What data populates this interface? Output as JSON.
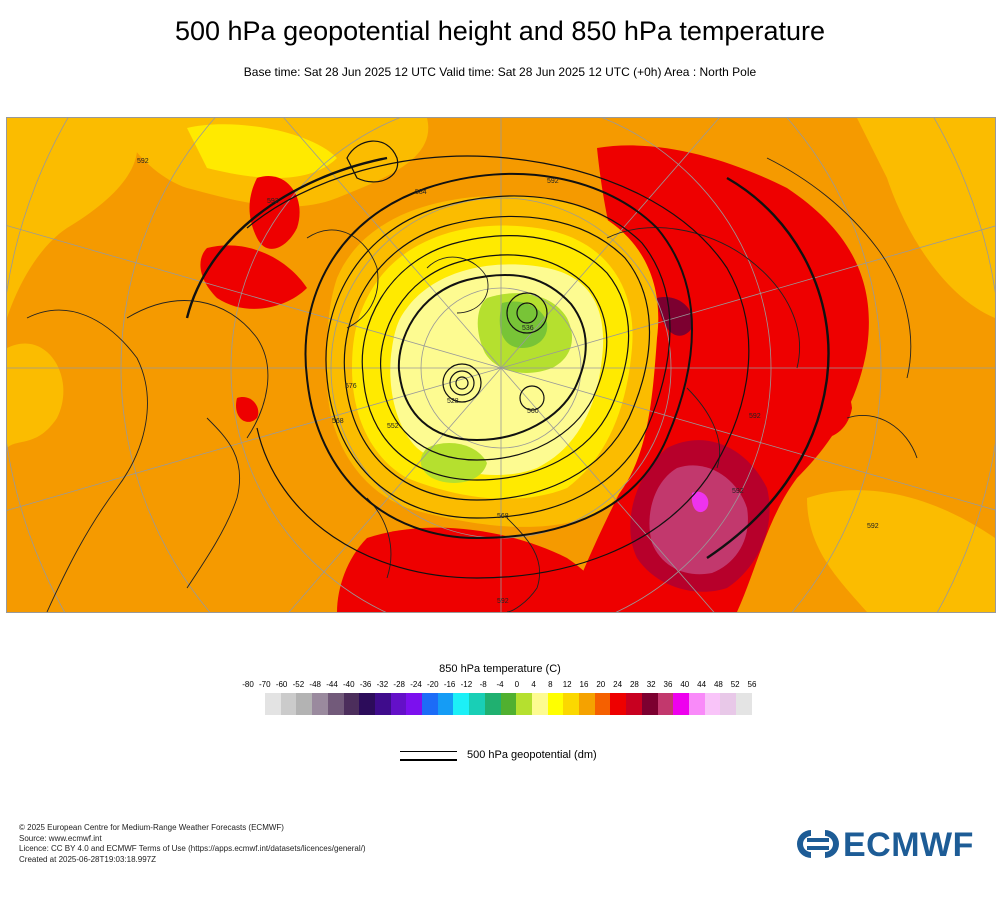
{
  "header": {
    "title": "500 hPa geopotential height and 850 hPa temperature",
    "subtitle": "Base time: Sat 28 Jun 2025 12 UTC Valid time: Sat 28 Jun 2025 12 UTC (+0h) Area : North Pole"
  },
  "map": {
    "contour_labels": [
      "528",
      "536",
      "544",
      "552",
      "560",
      "568",
      "576",
      "584",
      "592"
    ],
    "shading_colors": {
      "warm_background": "#f59a00",
      "light_orange": "#fbbc00",
      "yellow": "#ffea00",
      "pale_yellow": "#fdfb91",
      "lime": "#b5e02f",
      "green": "#78c437",
      "red": "#ee0000",
      "dark_red": "#b7002b",
      "maroon": "#c2386d",
      "magenta": "#ee33ee"
    }
  },
  "legend": {
    "title": "850 hPa temperature (C)",
    "ticks": [
      "-80",
      "-70",
      "-60",
      "-52",
      "-48",
      "-44",
      "-40",
      "-36",
      "-32",
      "-28",
      "-24",
      "-20",
      "-16",
      "-12",
      "-8",
      "-4",
      "0",
      "4",
      "8",
      "12",
      "16",
      "20",
      "24",
      "28",
      "32",
      "36",
      "40",
      "44",
      "48",
      "52",
      "56"
    ],
    "colors": [
      "#e3e3e3",
      "#cbcbcb",
      "#b3b3b3",
      "#9a8a9e",
      "#725a7a",
      "#4c2e5c",
      "#2c0c5a",
      "#3f0c8c",
      "#6410c8",
      "#7c10ee",
      "#1c6cf7",
      "#159cf5",
      "#1cf0f7",
      "#19cfb6",
      "#20b070",
      "#50b030",
      "#b5e02f",
      "#fdfb91",
      "#ffff00",
      "#fbd800",
      "#f5a200",
      "#f56000",
      "#ee0000",
      "#c80020",
      "#7c0030",
      "#c2386d",
      "#ee00ee",
      "#f98af9",
      "#f9c4f9",
      "#e8c8e8",
      "#e4e4e4"
    ],
    "geopotential_label": "500 hPa geopotential (dm)"
  },
  "footer": {
    "copyright": "© 2025 European Centre for Medium-Range Weather Forecasts (ECMWF)",
    "source": "Source: www.ecmwf.int",
    "licence": "Licence: CC BY 4.0 and ECMWF Terms of Use (https://apps.ecmwf.int/datasets/licences/general/)",
    "created": "Created at 2025-06-28T19:03:18.997Z"
  },
  "logo": {
    "text": "ECMWF",
    "color": "#1d5c96"
  }
}
